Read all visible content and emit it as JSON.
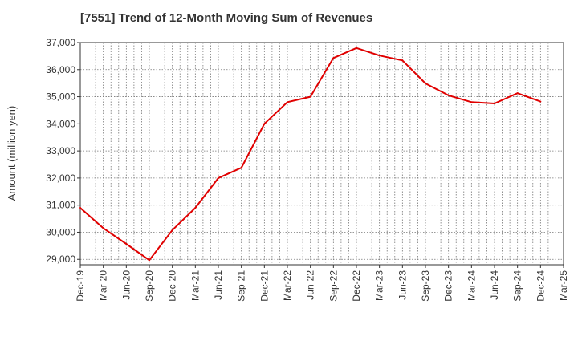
{
  "chart_data": {
    "type": "line",
    "title": "[7551]  Trend of 12-Month Moving Sum of Revenues",
    "xlabel": "",
    "ylabel": "Amount (million yen)",
    "ylim": [
      28800,
      37000
    ],
    "yticks": [
      29000,
      30000,
      31000,
      32000,
      33000,
      34000,
      35000,
      36000,
      37000
    ],
    "ytick_labels": [
      "29,000",
      "30,000",
      "31,000",
      "32,000",
      "33,000",
      "34,000",
      "35,000",
      "36,000",
      "37,000"
    ],
    "categories": [
      "Dec-19",
      "Mar-20",
      "Jun-20",
      "Sep-20",
      "Dec-20",
      "Mar-21",
      "Jun-21",
      "Sep-21",
      "Dec-21",
      "Mar-22",
      "Jun-22",
      "Sep-22",
      "Dec-22",
      "Mar-23",
      "Jun-23",
      "Sep-23",
      "Dec-23",
      "Mar-24",
      "Jun-24",
      "Sep-24",
      "Dec-24",
      "Mar-25"
    ],
    "series": [
      {
        "values": [
          30900,
          30150,
          29570,
          28970,
          30080,
          30900,
          32000,
          32380,
          34000,
          34800,
          35000,
          36430,
          36800,
          36520,
          36340,
          35490,
          35050,
          34800,
          34750,
          35130,
          34820,
          null
        ],
        "color": "#e00000"
      }
    ],
    "grid": true,
    "grid_style": "dotted",
    "legend": "none"
  }
}
